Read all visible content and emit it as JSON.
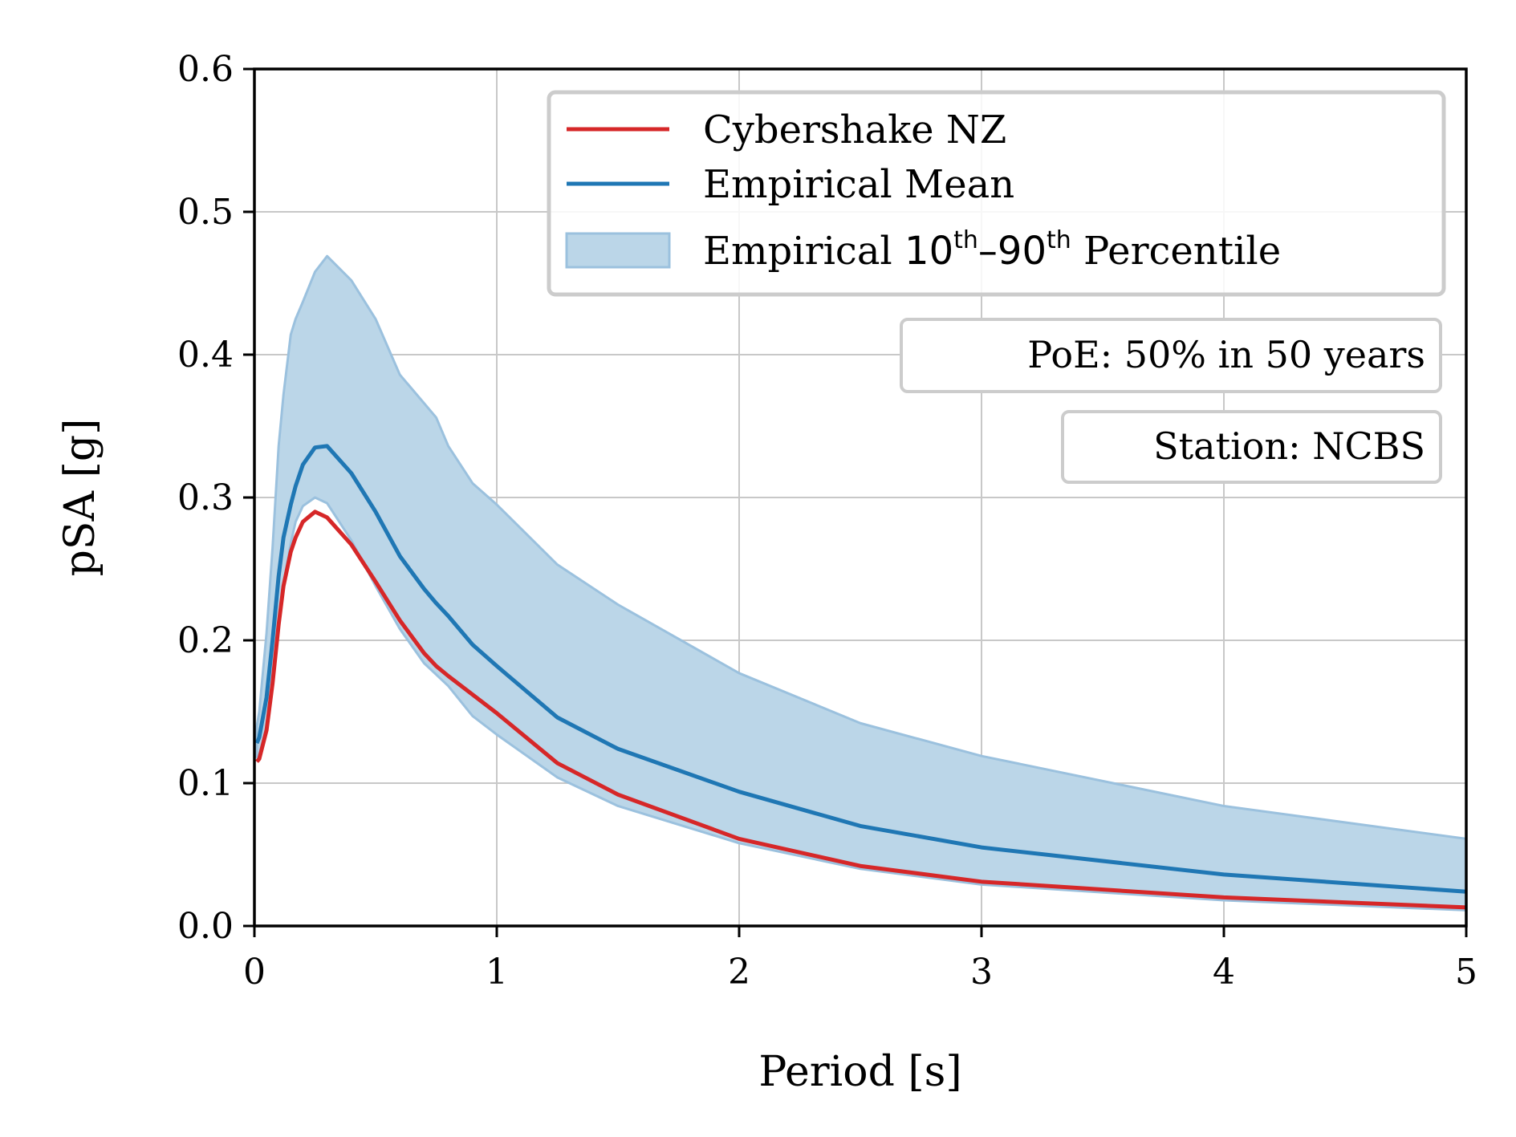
{
  "chart_data": {
    "type": "line",
    "xlabel": "Period [s]",
    "ylabel": "pSA [g]",
    "xlim": [
      0,
      5
    ],
    "ylim": [
      0,
      0.6
    ],
    "xticks": [
      "0",
      "1",
      "2",
      "3",
      "4",
      "5"
    ],
    "yticks": [
      "0.0",
      "0.1",
      "0.2",
      "0.3",
      "0.4",
      "0.5",
      "0.6"
    ],
    "grid": true,
    "legend_position": "top-right",
    "legend": {
      "cybershake": "Cybershake NZ",
      "mean": "Empirical Mean",
      "band_prefix": "Empirical ",
      "band_p1": "10",
      "band_sup1": "th",
      "band_dash": "–",
      "band_p2": "90",
      "band_sup2": "th",
      "band_suffix": " Percentile"
    },
    "annotations": {
      "poe": "PoE: 50% in 50 years",
      "station": "Station: NCBS"
    },
    "colors": {
      "cybershake": "#d62728",
      "mean": "#1f77b4",
      "band_fill": "#bbd6e8",
      "band_edge": "#9bc1de",
      "grid": "#c8c8c8",
      "box_border": "#cccccc"
    },
    "x": [
      0.01,
      0.02,
      0.05,
      0.075,
      0.1,
      0.12,
      0.15,
      0.17,
      0.2,
      0.25,
      0.3,
      0.4,
      0.5,
      0.6,
      0.7,
      0.75,
      0.8,
      0.9,
      1.0,
      1.25,
      1.5,
      2.0,
      2.5,
      3.0,
      4.0,
      5.0
    ],
    "series": [
      {
        "name": "Cybershake NZ",
        "values": [
          0.115,
          0.117,
          0.137,
          0.17,
          0.211,
          0.238,
          0.262,
          0.272,
          0.283,
          0.29,
          0.286,
          0.267,
          0.241,
          0.214,
          0.191,
          0.182,
          0.175,
          0.162,
          0.149,
          0.114,
          0.092,
          0.061,
          0.042,
          0.031,
          0.02,
          0.013
        ]
      },
      {
        "name": "Empirical Mean",
        "values": [
          0.128,
          0.132,
          0.16,
          0.2,
          0.245,
          0.272,
          0.295,
          0.308,
          0.323,
          0.335,
          0.336,
          0.317,
          0.29,
          0.259,
          0.236,
          0.226,
          0.217,
          0.197,
          0.182,
          0.146,
          0.124,
          0.094,
          0.07,
          0.055,
          0.036,
          0.024
        ]
      },
      {
        "name": "Empirical 10th–90th Percentile",
        "lower": [
          0.118,
          0.12,
          0.14,
          0.175,
          0.213,
          0.24,
          0.268,
          0.283,
          0.294,
          0.3,
          0.296,
          0.27,
          0.238,
          0.208,
          0.184,
          0.176,
          0.168,
          0.147,
          0.134,
          0.104,
          0.084,
          0.058,
          0.04,
          0.029,
          0.018,
          0.011
        ],
        "upper": [
          0.14,
          0.15,
          0.205,
          0.265,
          0.336,
          0.372,
          0.414,
          0.425,
          0.437,
          0.458,
          0.469,
          0.452,
          0.425,
          0.386,
          0.366,
          0.356,
          0.336,
          0.31,
          0.295,
          0.253,
          0.225,
          0.177,
          0.142,
          0.119,
          0.084,
          0.061
        ]
      }
    ]
  }
}
